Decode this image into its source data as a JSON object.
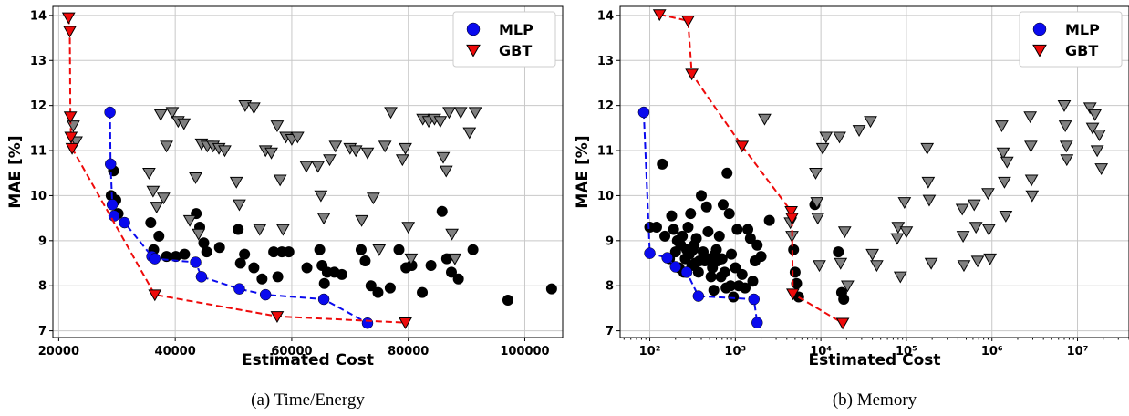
{
  "colors": {
    "mlp": "#0a0aee",
    "gbt": "#ee0a0a",
    "other_mlp": "#000000",
    "other_gbt": "#808080"
  },
  "chart_data": [
    {
      "type": "scatter",
      "caption": "(a) Time/Energy",
      "xlabel": "Estimated Cost",
      "ylabel": "MAE [%]",
      "xscale": "linear",
      "xlim": [
        19000,
        106500
      ],
      "ylim": [
        6.85,
        14.2
      ],
      "xticks": [
        20000,
        40000,
        60000,
        80000,
        100000
      ],
      "xtick_labels": [
        "20000",
        "40000",
        "60000",
        "80000",
        "100000"
      ],
      "yticks": [
        7,
        8,
        9,
        10,
        11,
        12,
        13,
        14
      ],
      "ytick_labels": [
        "7",
        "8",
        "9",
        "10",
        "11",
        "12",
        "13",
        "14"
      ],
      "grid": true,
      "legend": {
        "location": "top-right",
        "entries": [
          {
            "label": "MLP",
            "marker": "circle"
          },
          {
            "label": "GBT",
            "marker": "triangle-down"
          }
        ]
      },
      "series": [
        {
          "name": "MLP",
          "marker": "circle",
          "front": true,
          "connect": true,
          "x": [
            28800,
            28900,
            29200,
            29500,
            31300,
            36000,
            36500,
            43500,
            44500,
            51000,
            55500,
            65500,
            73000
          ],
          "y": [
            11.85,
            10.7,
            9.8,
            9.55,
            9.4,
            8.65,
            8.6,
            8.52,
            8.2,
            7.93,
            7.8,
            7.7,
            7.17
          ]
        },
        {
          "name": "GBT",
          "marker": "triangle-down",
          "front": true,
          "connect": true,
          "x": [
            21700,
            21900,
            22000,
            22100,
            22300,
            36500,
            57500,
            79500
          ],
          "y": [
            13.95,
            13.65,
            11.75,
            11.3,
            11.05,
            7.8,
            7.32,
            7.18
          ]
        },
        {
          "marker": "circle",
          "front": false,
          "x": [
            29000,
            29400,
            29800,
            30200,
            35800,
            36300,
            37200,
            38500,
            40100,
            41600,
            43600,
            44200,
            44900,
            45400,
            47600,
            50800,
            51200,
            51900,
            53500,
            54900,
            56900,
            57600,
            58300,
            59500,
            62600,
            64800,
            65200,
            65600,
            66100,
            67300,
            68600,
            71900,
            72600,
            73600,
            74800,
            76900,
            78400,
            79600,
            80600,
            82400,
            83900,
            85800,
            86600,
            87400,
            88600,
            91100,
            97100,
            104600
          ],
          "y": [
            10.0,
            10.55,
            9.9,
            9.6,
            9.4,
            8.8,
            9.1,
            8.65,
            8.65,
            8.7,
            9.6,
            9.3,
            8.95,
            8.75,
            8.85,
            9.25,
            8.5,
            8.7,
            8.4,
            8.15,
            8.75,
            8.2,
            8.75,
            8.75,
            8.4,
            8.8,
            8.45,
            8.05,
            8.3,
            8.3,
            8.25,
            8.8,
            8.55,
            8.0,
            7.85,
            7.95,
            8.8,
            8.4,
            8.45,
            7.85,
            8.45,
            9.65,
            8.6,
            8.3,
            8.15,
            8.8,
            7.68,
            7.93
          ]
        },
        {
          "marker": "triangle-down",
          "front": false,
          "x": [
            22500,
            23000,
            35500,
            36200,
            36800,
            37500,
            38000,
            38500,
            39500,
            40500,
            41500,
            42500,
            43500,
            44000,
            44500,
            45500,
            46500,
            47500,
            48500,
            50500,
            51000,
            52000,
            53500,
            54500,
            55500,
            56500,
            57500,
            58000,
            58500,
            59000,
            60000,
            61000,
            62500,
            64500,
            65000,
            65500,
            66500,
            67500,
            70000,
            71000,
            72000,
            73000,
            74000,
            75000,
            76000,
            77000,
            79000,
            79500,
            80000,
            80500,
            82500,
            83500,
            84500,
            85500,
            86000,
            86500,
            87000,
            87500,
            88000,
            89000,
            90500,
            91500
          ],
          "y": [
            11.55,
            11.2,
            10.5,
            10.1,
            9.75,
            11.8,
            9.95,
            11.1,
            11.85,
            11.65,
            11.6,
            9.45,
            10.4,
            9.15,
            11.15,
            11.1,
            11.1,
            11.05,
            11.0,
            10.3,
            9.8,
            12.0,
            11.95,
            9.25,
            11.0,
            10.95,
            11.55,
            10.35,
            9.25,
            11.3,
            11.25,
            11.3,
            10.65,
            10.65,
            10.0,
            9.5,
            10.8,
            11.1,
            11.05,
            11.0,
            9.45,
            10.95,
            9.95,
            8.8,
            11.1,
            11.85,
            10.8,
            11.05,
            9.3,
            8.6,
            11.7,
            11.65,
            11.7,
            11.65,
            10.85,
            10.55,
            11.85,
            9.15,
            8.6,
            11.85,
            11.4,
            11.85
          ]
        }
      ]
    },
    {
      "type": "scatter",
      "caption": "(b) Memory",
      "xlabel": "Estimated Cost",
      "ylabel": "MAE [%]",
      "xscale": "log",
      "xlim": [
        45,
        40000000
      ],
      "ylim": [
        6.85,
        14.2
      ],
      "xticks": [
        100,
        1000,
        10000,
        100000,
        1000000,
        10000000
      ],
      "xtick_labels": [
        "10²",
        "10³",
        "10⁴",
        "10⁵",
        "10⁶",
        "10⁷"
      ],
      "yticks": [
        7,
        8,
        9,
        10,
        11,
        12,
        13,
        14
      ],
      "ytick_labels": [
        "7",
        "8",
        "9",
        "10",
        "11",
        "12",
        "13",
        "14"
      ],
      "grid": true,
      "legend": {
        "location": "top-right",
        "entries": [
          {
            "label": "MLP",
            "marker": "circle"
          },
          {
            "label": "GBT",
            "marker": "triangle-down"
          }
        ]
      },
      "series": [
        {
          "name": "MLP",
          "marker": "circle",
          "front": true,
          "connect": true,
          "x": [
            85,
            100,
            160,
            200,
            270,
            370,
            1650,
            1800
          ],
          "y": [
            11.85,
            8.72,
            8.62,
            8.42,
            8.3,
            7.77,
            7.7,
            7.18
          ]
        },
        {
          "name": "GBT",
          "marker": "triangle-down",
          "front": true,
          "connect": true,
          "x": [
            130,
            280,
            310,
            1200,
            4500,
            4600,
            4700,
            18000
          ],
          "y": [
            14.02,
            13.88,
            12.7,
            11.1,
            9.65,
            9.5,
            7.82,
            7.17
          ]
        },
        {
          "marker": "circle",
          "front": false,
          "x": [
            100,
            120,
            140,
            150,
            170,
            180,
            190,
            200,
            210,
            220,
            230,
            240,
            250,
            260,
            270,
            280,
            290,
            300,
            310,
            320,
            330,
            340,
            350,
            370,
            380,
            400,
            420,
            440,
            460,
            480,
            500,
            520,
            540,
            560,
            580,
            600,
            620,
            650,
            680,
            700,
            720,
            750,
            780,
            800,
            850,
            880,
            900,
            950,
            1000,
            1050,
            1100,
            1200,
            1300,
            1400,
            1500,
            1600,
            1700,
            1800,
            2000,
            2500,
            4800,
            5000,
            5200,
            5500,
            8500,
            16000,
            17500,
            18500
          ],
          "y": [
            9.3,
            9.3,
            10.7,
            9.1,
            8.6,
            9.55,
            9.25,
            8.75,
            9.0,
            8.4,
            8.9,
            9.1,
            8.3,
            8.6,
            8.8,
            9.3,
            8.7,
            9.6,
            8.45,
            8.8,
            8.9,
            8.5,
            9.05,
            8.3,
            8.55,
            10.0,
            8.75,
            8.55,
            9.75,
            9.2,
            8.6,
            8.2,
            8.4,
            7.9,
            8.7,
            8.8,
            8.55,
            9.1,
            8.2,
            8.6,
            9.8,
            8.3,
            7.95,
            10.5,
            9.6,
            8.0,
            8.7,
            7.75,
            8.4,
            9.25,
            8.0,
            8.25,
            7.95,
            9.25,
            9.05,
            8.1,
            8.55,
            8.9,
            8.65,
            9.45,
            8.8,
            8.3,
            8.05,
            7.75,
            9.8,
            8.75,
            7.85,
            7.7
          ]
        },
        {
          "marker": "triangle-down",
          "front": false,
          "x": [
            2200,
            4400,
            4600,
            8700,
            9000,
            9200,
            9600,
            10500,
            11500,
            16500,
            17000,
            19000,
            20500,
            28000,
            38000,
            40000,
            45000,
            78000,
            80000,
            85000,
            95000,
            100000,
            175000,
            180000,
            185000,
            195000,
            450000,
            460000,
            470000,
            620000,
            650000,
            680000,
            900000,
            920000,
            950000,
            1300000,
            1350000,
            1400000,
            1450000,
            1500000,
            2800000,
            2850000,
            2900000,
            2950000,
            7000000,
            7200000,
            7400000,
            7500000,
            14000000,
            15000000,
            16000000,
            17000000,
            18000000,
            19000000
          ],
          "y": [
            11.7,
            9.4,
            9.1,
            10.5,
            9.85,
            9.5,
            8.45,
            11.05,
            11.3,
            11.3,
            8.5,
            9.2,
            8.0,
            11.45,
            11.65,
            8.7,
            8.45,
            9.05,
            9.3,
            8.2,
            9.85,
            9.2,
            11.05,
            10.3,
            9.9,
            8.5,
            9.7,
            9.1,
            8.45,
            9.8,
            9.3,
            8.55,
            10.05,
            9.25,
            8.6,
            11.55,
            10.95,
            10.3,
            9.55,
            10.75,
            11.75,
            11.1,
            10.35,
            10.0,
            12.0,
            11.55,
            11.1,
            10.8,
            11.95,
            11.5,
            11.8,
            11.0,
            11.35,
            10.6
          ]
        }
      ]
    }
  ]
}
